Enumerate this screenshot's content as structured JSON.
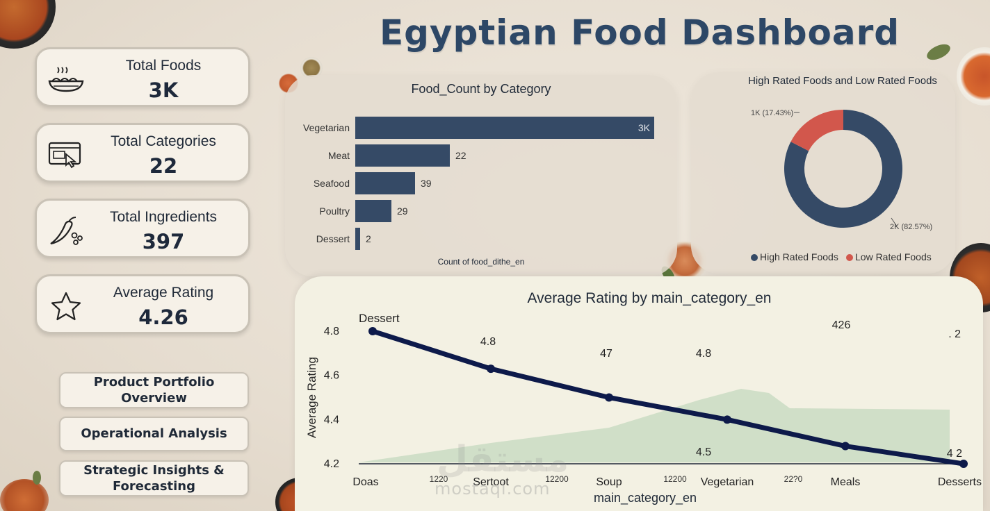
{
  "dashboard": {
    "title": "Egyptian Food Dashboard"
  },
  "kpis": [
    {
      "label": "Total Foods",
      "value": "3K",
      "icon": "noodles-bowl-icon"
    },
    {
      "label": "Total Categories",
      "value": "22",
      "icon": "screen-cursor-icon"
    },
    {
      "label": "Total Ingredients",
      "value": "397",
      "icon": "chili-pepper-icon"
    },
    {
      "label": "Average Rating",
      "value": "4.26",
      "icon": "star-icon"
    }
  ],
  "nav": [
    {
      "label": "Product Portfolio Overview"
    },
    {
      "label": "Operational Analysis"
    },
    {
      "label": "Strategic Insights & Forecasting"
    }
  ],
  "colors": {
    "navy": "#354a66",
    "red": "#d2574c",
    "line": "#0d1a4a",
    "area": "#b9d3b5",
    "title": "#2d4766"
  },
  "watermark": {
    "latin": "mostaql.com",
    "arabic": "مستقل"
  },
  "chart_data": [
    {
      "type": "bar",
      "title": "Food_Count by Category",
      "xlabel": "Count of food_dithe_en",
      "categories": [
        "Vegetarian",
        "Meat",
        "Seafood",
        "Poultry",
        "Dessert"
      ],
      "values": [
        3000,
        22,
        39,
        29,
        2
      ],
      "data_labels": [
        "3K",
        "22",
        "39",
        "29",
        "2"
      ]
    },
    {
      "type": "pie",
      "title": "High Rated Foods and Low Rated Foods",
      "slices": [
        {
          "name": "High Rated Foods",
          "value": 82.57,
          "label": "2K (82.57%)"
        },
        {
          "name": "Low Rated Foods",
          "value": 17.43,
          "label": "1K (17.43%)"
        }
      ],
      "legend": [
        "High Rated Foods",
        "Low Rated Foods"
      ],
      "legend_position": "bottom"
    },
    {
      "type": "line",
      "title": "Average Rating by main_category_en",
      "xlabel": "main_category_en",
      "ylabel": "Average Rating",
      "x": [
        "Doas",
        "Sertoot",
        "Soup",
        "Vegetarian",
        "Meals",
        "Desserts"
      ],
      "x_minor_ticks": [
        "1220",
        "12200",
        "12200",
        "22?0"
      ],
      "y": [
        4.8,
        4.63,
        4.5,
        4.4,
        4.28,
        4.2
      ],
      "yticks": [
        "4.8",
        "4.6",
        "4.4",
        "4.2"
      ],
      "ylim": [
        4.2,
        4.8
      ],
      "annotations": [
        "Dessert",
        "4.8",
        "47",
        "4.8",
        "426",
        ". 2",
        "4.5",
        "4 2"
      ]
    }
  ]
}
